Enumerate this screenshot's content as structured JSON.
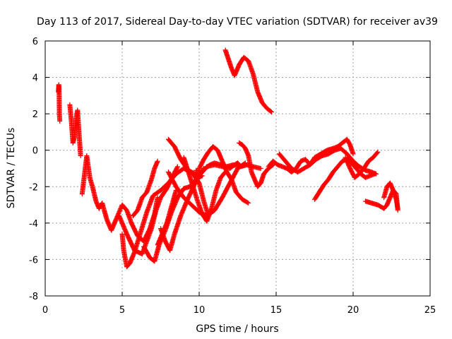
{
  "chart_data": {
    "type": "scatter",
    "title": "Day 113 of 2017, Sidereal Day-to-day VTEC variation (SDTVAR) for receiver av39",
    "xlabel": "GPS time / hours",
    "ylabel": "SDTVAR / TECUs",
    "xlim": [
      0,
      25
    ],
    "ylim": [
      -8,
      6
    ],
    "xticks": [
      "0",
      "5",
      "10",
      "15",
      "20",
      "25"
    ],
    "yticks": [
      "-8",
      "-6",
      "-4",
      "-2",
      "0",
      "2",
      "4",
      "6"
    ],
    "grid": true,
    "marker": "+",
    "color": "#ff0000",
    "series": [
      {
        "name": "s1",
        "x": [
          0.85,
          0.88,
          0.9,
          0.92,
          0.95
        ],
        "y": [
          3.2,
          3.6,
          3.4,
          2.0,
          1.6
        ]
      },
      {
        "name": "s2",
        "x": [
          1.6,
          1.7,
          1.8,
          1.9,
          2.0,
          2.1,
          2.2,
          2.3
        ],
        "y": [
          2.5,
          1.6,
          0.4,
          0.7,
          1.7,
          2.2,
          0.9,
          -0.3
        ]
      },
      {
        "name": "s3",
        "x": [
          2.4,
          2.7,
          2.9,
          3.1,
          3.3,
          3.5,
          3.7,
          4.0,
          4.3,
          4.6,
          5.0,
          5.3,
          5.6,
          6.0,
          6.4,
          6.8,
          7.1,
          7.3
        ],
        "y": [
          -2.4,
          -0.3,
          -1.5,
          -2.1,
          -2.8,
          -3.2,
          -2.9,
          -3.8,
          -4.4,
          -3.8,
          -3.0,
          -3.3,
          -4.0,
          -4.7,
          -5.0,
          -4.3,
          -3.5,
          -2.6
        ]
      },
      {
        "name": "s4",
        "x": [
          5.0,
          5.1,
          5.3,
          5.5,
          5.8,
          6.2,
          6.6,
          7.0,
          7.5,
          8.0,
          8.5,
          9.0,
          9.5,
          10.0,
          10.5,
          11.0,
          11.5,
          12.0,
          12.3,
          12.5,
          12.7,
          12.9
        ],
        "y": [
          -4.6,
          -5.5,
          -6.4,
          -6.2,
          -5.6,
          -4.5,
          -3.4,
          -2.5,
          -2.2,
          -1.8,
          -1.3,
          -1.0,
          -1.2,
          -1.4,
          -0.9,
          -0.8,
          -0.9,
          -1.0,
          -0.8,
          -0.7,
          -0.9,
          -0.8
        ]
      },
      {
        "name": "s5",
        "x": [
          4.8,
          5.3,
          5.8,
          6.3,
          6.6,
          6.9,
          7.2,
          7.5,
          7.9,
          8.3,
          8.6
        ],
        "y": [
          -3.6,
          -4.6,
          -5.5,
          -5.7,
          -5.0,
          -4.3,
          -3.3,
          -2.6,
          -2.1,
          -1.4,
          -0.9
        ]
      },
      {
        "name": "s6",
        "x": [
          6.4,
          6.8,
          7.1,
          7.4,
          7.8,
          8.2,
          8.6,
          9.0,
          9.4,
          9.8,
          10.2
        ],
        "y": [
          -5.3,
          -5.9,
          -6.1,
          -5.2,
          -4.4,
          -3.4,
          -2.6,
          -2.1,
          -2.0,
          -1.6,
          -1.4
        ]
      },
      {
        "name": "s7",
        "x": [
          5.7,
          6.0,
          6.3,
          6.6,
          6.9,
          7.1,
          7.3
        ],
        "y": [
          -3.6,
          -3.3,
          -2.6,
          -2.3,
          -1.6,
          -1.0,
          -0.6
        ]
      },
      {
        "name": "s8",
        "x": [
          7.3,
          7.6,
          7.9,
          8.2,
          8.5
        ],
        "y": [
          -5.2,
          -4.6,
          -4.0,
          -3.1,
          -2.2
        ]
      },
      {
        "name": "s9",
        "x": [
          7.5,
          7.8,
          8.1,
          8.4,
          8.8,
          9.3,
          9.8,
          10.3
        ],
        "y": [
          -4.3,
          -5.0,
          -5.5,
          -4.6,
          -3.6,
          -2.6,
          -1.7,
          -1.0
        ]
      },
      {
        "name": "s10",
        "x": [
          8.0,
          8.5,
          9.0,
          9.5,
          10.0,
          10.5,
          11.0,
          11.5,
          12.0,
          12.5,
          13.0
        ],
        "y": [
          -1.2,
          -2.0,
          -2.6,
          -3.0,
          -3.4,
          -3.6,
          -3.3,
          -2.6,
          -1.8,
          -1.0,
          -0.7
        ]
      },
      {
        "name": "s11",
        "x": [
          8.0,
          8.4,
          8.8,
          9.2,
          9.6,
          10.0,
          10.3,
          10.6
        ],
        "y": [
          0.6,
          0.2,
          -0.5,
          -1.0,
          -1.3,
          -1.8,
          -2.8,
          -3.6
        ]
      },
      {
        "name": "s12",
        "x": [
          9.8,
          10.1,
          10.4,
          10.7,
          11.0,
          11.4,
          11.8,
          12.2,
          12.7,
          13.1,
          13.5,
          14.0
        ],
        "y": [
          -1.1,
          -1.2,
          -1.0,
          -0.8,
          -0.7,
          -0.8,
          -0.9,
          -0.8,
          -0.9,
          -0.8,
          -0.9,
          -1.0
        ]
      },
      {
        "name": "s13",
        "x": [
          10.0,
          10.3,
          10.6,
          10.9,
          11.2,
          11.5,
          11.8,
          12.1,
          12.4,
          12.8,
          13.2
        ],
        "y": [
          -1.0,
          -0.5,
          -0.1,
          0.2,
          0.0,
          -0.6,
          -1.2,
          -1.6,
          -2.3,
          -2.7,
          -2.9
        ]
      },
      {
        "name": "s14",
        "x": [
          9.0,
          9.3,
          9.6,
          9.9,
          10.2,
          10.5,
          10.8,
          11.1,
          11.4,
          11.7
        ],
        "y": [
          -0.4,
          -1.2,
          -2.0,
          -2.8,
          -3.5,
          -3.9,
          -3.2,
          -2.2,
          -1.5,
          -1.2
        ]
      },
      {
        "name": "s15",
        "x": [
          12.6,
          12.8,
          13.0,
          13.2,
          13.4,
          13.6,
          13.8,
          14.0,
          14.2,
          14.5,
          14.8
        ],
        "y": [
          0.4,
          0.3,
          0.1,
          -0.3,
          -1.2,
          -1.6,
          -2.0,
          -1.8,
          -1.3,
          -1.0,
          -0.8
        ]
      },
      {
        "name": "s16",
        "x": [
          11.7,
          11.9,
          12.1,
          12.3,
          12.6,
          12.9,
          13.2,
          13.5,
          13.8,
          14.1,
          14.4,
          14.7
        ],
        "y": [
          5.5,
          5.0,
          4.5,
          4.1,
          4.7,
          5.1,
          4.9,
          4.2,
          3.2,
          2.6,
          2.3,
          2.1
        ]
      },
      {
        "name": "s17",
        "x": [
          14.5,
          14.8,
          15.1,
          15.4,
          15.7,
          16.0,
          16.3,
          16.6,
          16.9,
          17.2,
          17.5,
          17.9,
          18.3,
          18.7,
          19.0,
          19.3,
          19.6,
          19.8,
          20.0
        ],
        "y": [
          -0.9,
          -0.6,
          -0.8,
          -0.9,
          -1.0,
          -1.2,
          -1.0,
          -0.6,
          -0.5,
          -0.8,
          -0.4,
          -0.2,
          0.0,
          0.1,
          0.2,
          0.4,
          0.6,
          0.3,
          -0.2
        ]
      },
      {
        "name": "s18",
        "x": [
          15.2,
          15.6,
          16.0,
          16.4,
          16.8,
          17.2,
          17.6,
          18.0,
          18.4,
          18.8,
          19.2,
          19.6,
          20.0,
          20.4,
          20.8,
          21.2,
          21.5
        ],
        "y": [
          -0.2,
          -0.6,
          -1.0,
          -1.2,
          -1.0,
          -0.8,
          -0.5,
          -0.3,
          -0.2,
          0.0,
          0.1,
          -0.2,
          -0.6,
          -0.9,
          -1.1,
          -1.2,
          -1.3
        ]
      },
      {
        "name": "s19",
        "x": [
          17.5,
          17.8,
          18.1,
          18.4,
          18.7,
          19.0,
          19.3,
          19.6,
          19.9,
          20.2,
          20.5,
          20.8,
          21.1,
          21.4
        ],
        "y": [
          -2.7,
          -2.3,
          -1.9,
          -1.6,
          -1.2,
          -0.9,
          -0.6,
          -0.5,
          -0.7,
          -1.0,
          -1.3,
          -1.5,
          -1.4,
          -1.3
        ]
      },
      {
        "name": "s20",
        "x": [
          19.5,
          19.8,
          20.1,
          20.4,
          20.7,
          21.0,
          21.3,
          21.6
        ],
        "y": [
          -0.4,
          -1.0,
          -1.5,
          -1.3,
          -1.0,
          -0.6,
          -0.4,
          -0.1
        ]
      },
      {
        "name": "s21",
        "x": [
          20.8,
          21.2,
          21.6,
          22.0,
          22.2,
          22.4,
          22.6,
          22.8,
          22.9
        ],
        "y": [
          -2.8,
          -2.9,
          -3.0,
          -3.2,
          -3.0,
          -2.6,
          -2.2,
          -2.7,
          -3.2
        ]
      },
      {
        "name": "s22",
        "x": [
          22.0,
          22.2,
          22.4,
          22.6,
          22.8,
          22.9
        ],
        "y": [
          -2.6,
          -2.0,
          -1.8,
          -2.2,
          -2.4,
          -3.3
        ]
      }
    ]
  }
}
